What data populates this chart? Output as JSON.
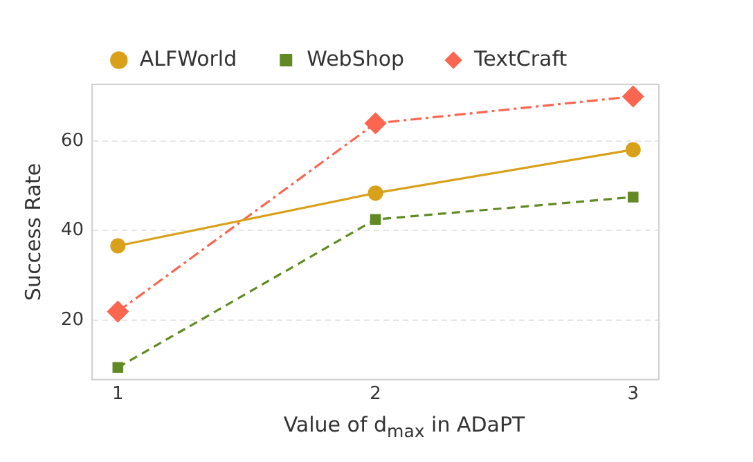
{
  "chart_data": {
    "type": "line",
    "xlabel": "Value of d$_{max}$ in ADaPT",
    "ylabel": "Success Rate",
    "x": [
      1,
      2,
      3
    ],
    "xlim": [
      0.9,
      3.1
    ],
    "xticks": [
      1,
      2,
      3
    ],
    "ylim": [
      6.7,
      72.7
    ],
    "yticks": [
      20,
      40,
      60
    ],
    "grid": "y",
    "legend": "top",
    "series": [
      {
        "name": "ALFWorld",
        "color": "#d9a01a",
        "values": [
          36.6,
          48.4,
          58.1
        ],
        "marker": "circle",
        "line_style": "solid"
      },
      {
        "name": "WebShop",
        "color": "#628a24",
        "values": [
          9.4,
          42.5,
          47.5
        ],
        "marker": "square",
        "line_style": "dashed"
      },
      {
        "name": "TextCraft",
        "color": "#fa6650",
        "values": [
          21.9,
          64.0,
          70.0
        ],
        "marker": "diamond",
        "line_style": "dashdot"
      }
    ]
  }
}
